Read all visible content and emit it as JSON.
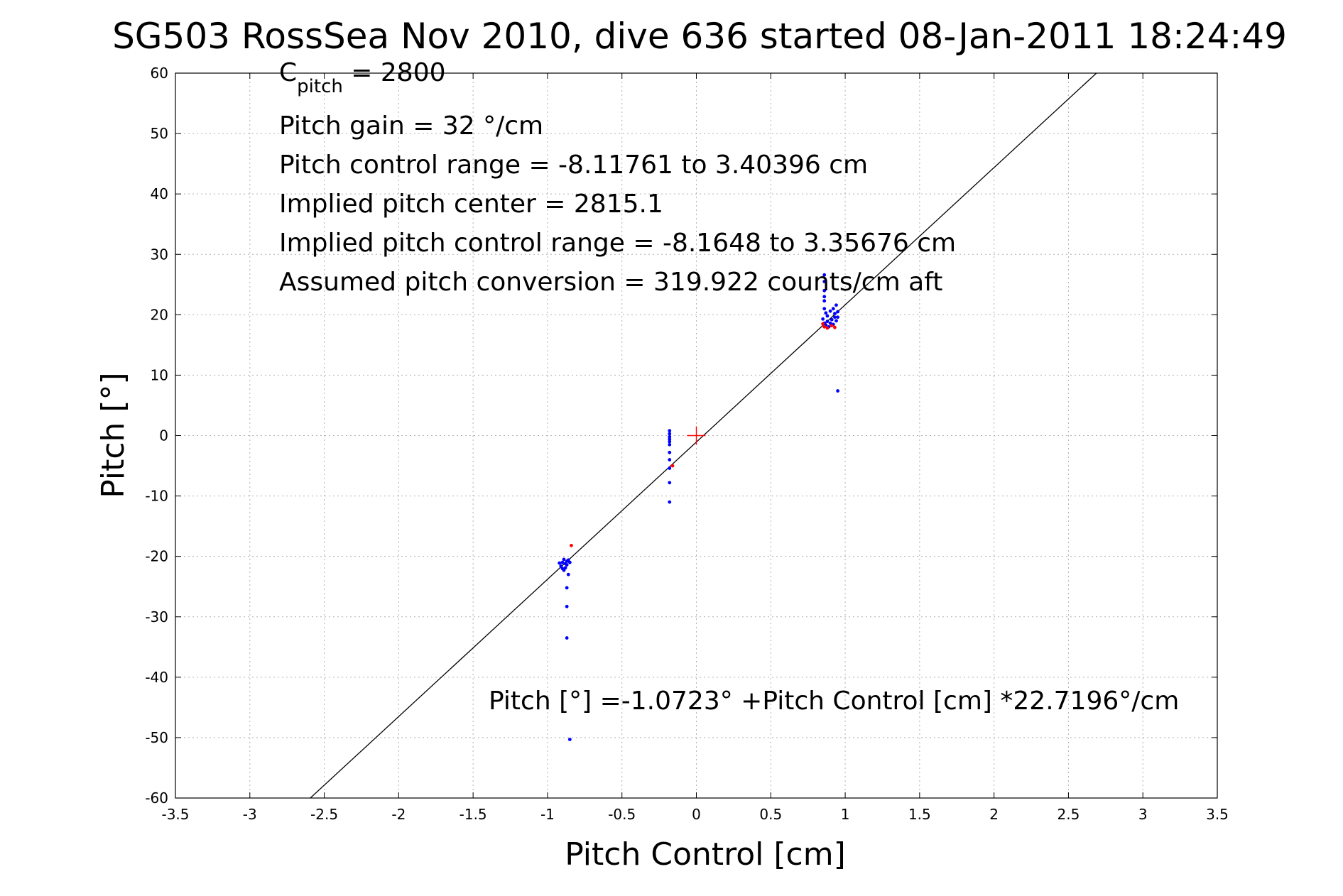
{
  "chart_data": {
    "type": "scatter",
    "title": "SG503 RossSea Nov 2010, dive 636 started 08-Jan-2011 18:24:49",
    "xlabel": "Pitch Control [cm]",
    "ylabel": "Pitch [°]",
    "xlim": [
      -3.5,
      3.5
    ],
    "ylim": [
      -60,
      60
    ],
    "xticks": [
      -3.5,
      -3,
      -2.5,
      -2,
      -1.5,
      -1,
      -0.5,
      0,
      0.5,
      1,
      1.5,
      2,
      2.5,
      3,
      3.5
    ],
    "yticks": [
      -60,
      -50,
      -40,
      -30,
      -20,
      -10,
      0,
      10,
      20,
      30,
      40,
      50,
      60
    ],
    "grid": true,
    "annotations": {
      "c_pitch_main": "C",
      "c_pitch_sub": "pitch",
      "c_pitch_rest": " = 2800",
      "pitch_gain": "Pitch gain = 32 °/cm",
      "pitch_control_range": "Pitch control range = -8.11761 to 3.40396 cm",
      "implied_center": "Implied pitch center = 2815.1",
      "implied_range": "Implied pitch control range = -8.1648 to 3.35676 cm",
      "assumed_conversion": "Assumed pitch conversion = 319.922 counts/cm aft",
      "fit_equation": "Pitch [°] =-1.0723° +Pitch Control [cm] *22.7196°/cm"
    },
    "fit_line": {
      "intercept": -1.0723,
      "slope": 22.7196,
      "color": "#000000"
    },
    "center_marker": {
      "x": 0,
      "y": 0,
      "color": "#ff0000"
    },
    "series": [
      {
        "color": "#0000ff",
        "points": [
          [
            -0.89,
            -20.5
          ],
          [
            -0.9,
            -21.0
          ],
          [
            -0.88,
            -21.2
          ],
          [
            -0.91,
            -21.6
          ],
          [
            -0.87,
            -20.8
          ],
          [
            -0.9,
            -22.0
          ],
          [
            -0.88,
            -21.9
          ],
          [
            -0.86,
            -20.6
          ],
          [
            -0.89,
            -22.3
          ],
          [
            -0.87,
            -21.4
          ],
          [
            -0.92,
            -21.1
          ],
          [
            -0.85,
            -21.0
          ],
          [
            -0.86,
            -23.0
          ],
          [
            -0.87,
            -25.2
          ],
          [
            -0.87,
            -28.3
          ],
          [
            -0.87,
            -33.5
          ],
          [
            -0.85,
            -50.3
          ],
          [
            -0.18,
            0.8
          ],
          [
            -0.18,
            0.3
          ],
          [
            -0.18,
            -0.2
          ],
          [
            -0.18,
            -0.6
          ],
          [
            -0.18,
            -1.0
          ],
          [
            -0.18,
            -1.5
          ],
          [
            -0.18,
            -2.8
          ],
          [
            -0.18,
            -4.0
          ],
          [
            -0.18,
            -5.4
          ],
          [
            -0.18,
            -7.8
          ],
          [
            -0.18,
            -11.0
          ],
          [
            0.86,
            26.6
          ],
          [
            0.86,
            25.5
          ],
          [
            0.86,
            24.0
          ],
          [
            0.86,
            23.0
          ],
          [
            0.86,
            22.3
          ],
          [
            0.86,
            21.0
          ],
          [
            0.87,
            20.3
          ],
          [
            0.88,
            19.8
          ],
          [
            0.9,
            20.6
          ],
          [
            0.92,
            21.0
          ],
          [
            0.94,
            21.6
          ],
          [
            0.95,
            20.5
          ],
          [
            0.93,
            19.6
          ],
          [
            0.91,
            19.2
          ],
          [
            0.88,
            18.9
          ],
          [
            0.86,
            18.6
          ],
          [
            0.87,
            18.3
          ],
          [
            0.89,
            18.0
          ],
          [
            0.92,
            18.4
          ],
          [
            0.94,
            19.0
          ],
          [
            0.95,
            19.6
          ],
          [
            0.9,
            18.6
          ],
          [
            0.85,
            19.3
          ],
          [
            0.93,
            20.2
          ],
          [
            0.95,
            7.4
          ]
        ]
      },
      {
        "color": "#ff0000",
        "points": [
          [
            -0.84,
            -18.2
          ],
          [
            -0.16,
            -5.0
          ],
          [
            0.86,
            18.0
          ],
          [
            0.88,
            17.8
          ],
          [
            0.91,
            18.2
          ],
          [
            0.93,
            17.9
          ],
          [
            0.85,
            18.5
          ]
        ]
      }
    ]
  }
}
